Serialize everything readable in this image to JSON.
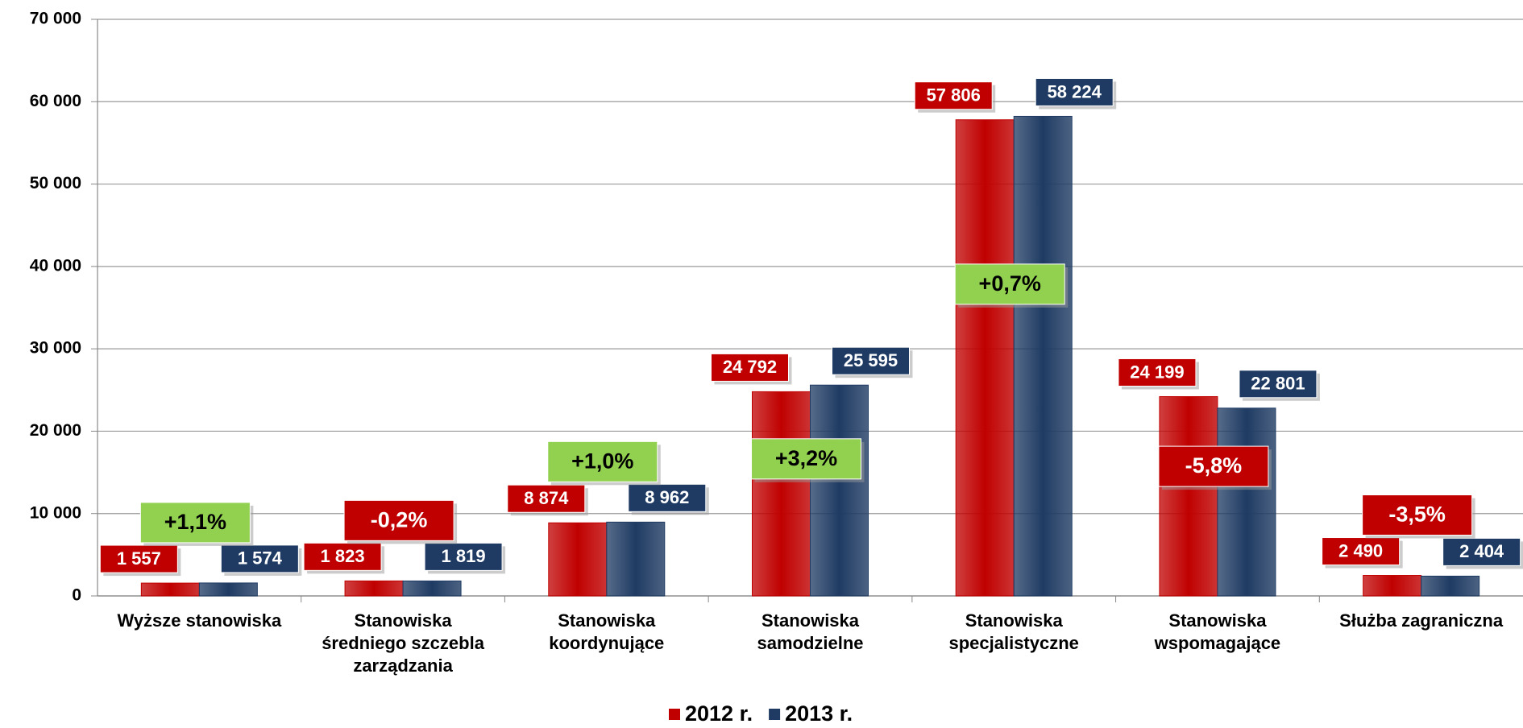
{
  "chart_data": {
    "type": "bar",
    "categories": [
      [
        "Wyższe stanowiska"
      ],
      [
        "Stanowiska",
        "średniego szczebla",
        "zarządzania"
      ],
      [
        "Stanowiska",
        "koordynujące"
      ],
      [
        "Stanowiska",
        "samodzielne"
      ],
      [
        "Stanowiska",
        "specjalistyczne"
      ],
      [
        "Stanowiska",
        "wspomagające"
      ],
      [
        "Służba zagraniczna"
      ]
    ],
    "series": [
      {
        "name": "2012 r.",
        "color": "#c00000",
        "values": [
          1557,
          1823,
          8874,
          24792,
          57806,
          24199,
          2490
        ],
        "value_labels": [
          "1 557",
          "1 823",
          "8 874",
          "24 792",
          "57 806",
          "24 199",
          "2 490"
        ]
      },
      {
        "name": "2013 r.",
        "color": "#1f3b63",
        "values": [
          1574,
          1819,
          8962,
          25595,
          58224,
          22801,
          2404
        ],
        "value_labels": [
          "1 574",
          "1 819",
          "8 962",
          "25 595",
          "58 224",
          "22 801",
          "2 404"
        ]
      }
    ],
    "changes": [
      "+1,1%",
      "-0,2%",
      "+1,0%",
      "+3,2%",
      "+0,7%",
      "-5,8%",
      "-3,5%"
    ],
    "ylim": [
      0,
      70000
    ],
    "yticks": [
      0,
      {
        "value": 10000,
        "label": "10 000"
      },
      {
        "value": 20000,
        "label": "20 000"
      },
      {
        "value": 30000,
        "label": "30 000"
      },
      {
        "value": 40000,
        "label": "40 000"
      },
      {
        "value": 50000,
        "label": "50 000"
      },
      {
        "value": 60000,
        "label": "60 000"
      },
      {
        "value": 70000,
        "label": "70 000"
      }
    ],
    "grid": true,
    "legend": "bottom"
  }
}
